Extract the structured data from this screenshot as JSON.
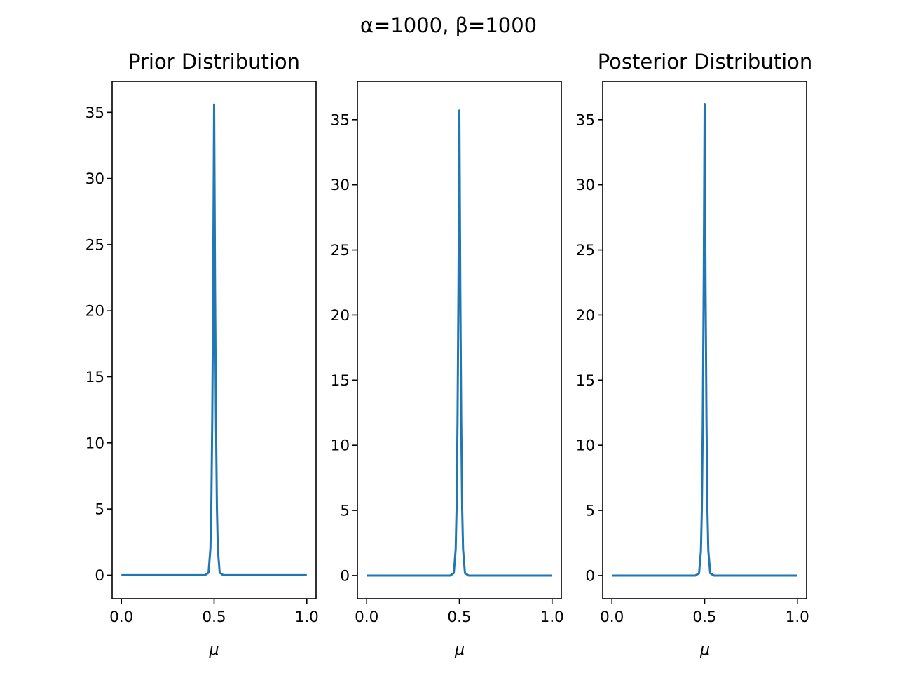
{
  "figure": {
    "suptitle": "α=1000, β=1000",
    "line_color": "#1f77b4"
  },
  "chart_data": [
    {
      "type": "line",
      "title": "Prior Distribution",
      "xlabel": "μ",
      "ylabel": "",
      "xlim": [
        -0.05,
        1.05
      ],
      "ylim": [
        -1.78,
        37.35
      ],
      "xticks": [
        "0.0",
        "0.5",
        "1.0"
      ],
      "yticks": [
        "0",
        "5",
        "10",
        "15",
        "20",
        "25",
        "30",
        "35"
      ],
      "grid": false,
      "series": [
        {
          "x": [
            0,
            0.45,
            0.47,
            0.48,
            0.485,
            0.49,
            0.495,
            0.5,
            0.505,
            0.51,
            0.515,
            0.52,
            0.53,
            0.55,
            1.0
          ],
          "y": [
            0,
            0.0,
            0.19,
            2.0,
            5.2,
            11.8,
            21.9,
            35.6,
            21.9,
            11.8,
            5.2,
            2.0,
            0.19,
            0.0,
            0
          ]
        }
      ]
    },
    {
      "type": "line",
      "title": "",
      "xlabel": "μ",
      "ylabel": "",
      "xlim": [
        -0.05,
        1.05
      ],
      "ylim": [
        -1.78,
        37.95
      ],
      "xticks": [
        "0.0",
        "0.5",
        "1.0"
      ],
      "yticks": [
        "0",
        "5",
        "10",
        "15",
        "20",
        "25",
        "30",
        "35"
      ],
      "grid": false,
      "series": [
        {
          "x": [
            0,
            0.45,
            0.47,
            0.48,
            0.485,
            0.49,
            0.495,
            0.5,
            0.505,
            0.51,
            0.515,
            0.52,
            0.53,
            0.55,
            1.0
          ],
          "y": [
            0,
            0.0,
            0.19,
            2.0,
            5.2,
            11.9,
            22.0,
            35.7,
            22.0,
            11.9,
            5.2,
            2.0,
            0.19,
            0.0,
            0
          ]
        }
      ]
    },
    {
      "type": "line",
      "title": "Posterior Distribution",
      "xlabel": "μ",
      "ylabel": "",
      "xlim": [
        -0.05,
        1.05
      ],
      "ylim": [
        -1.78,
        37.95
      ],
      "xticks": [
        "0.0",
        "0.5",
        "1.0"
      ],
      "yticks": [
        "0",
        "5",
        "10",
        "15",
        "20",
        "25",
        "30",
        "35"
      ],
      "grid": false,
      "series": [
        {
          "x": [
            0,
            0.45,
            0.47,
            0.48,
            0.485,
            0.49,
            0.495,
            0.5,
            0.505,
            0.51,
            0.515,
            0.52,
            0.53,
            0.55,
            1.0
          ],
          "y": [
            0,
            0.0,
            0.18,
            1.9,
            5.1,
            11.8,
            22.2,
            36.2,
            22.2,
            11.8,
            5.1,
            1.9,
            0.18,
            0.0,
            0
          ]
        }
      ]
    }
  ]
}
